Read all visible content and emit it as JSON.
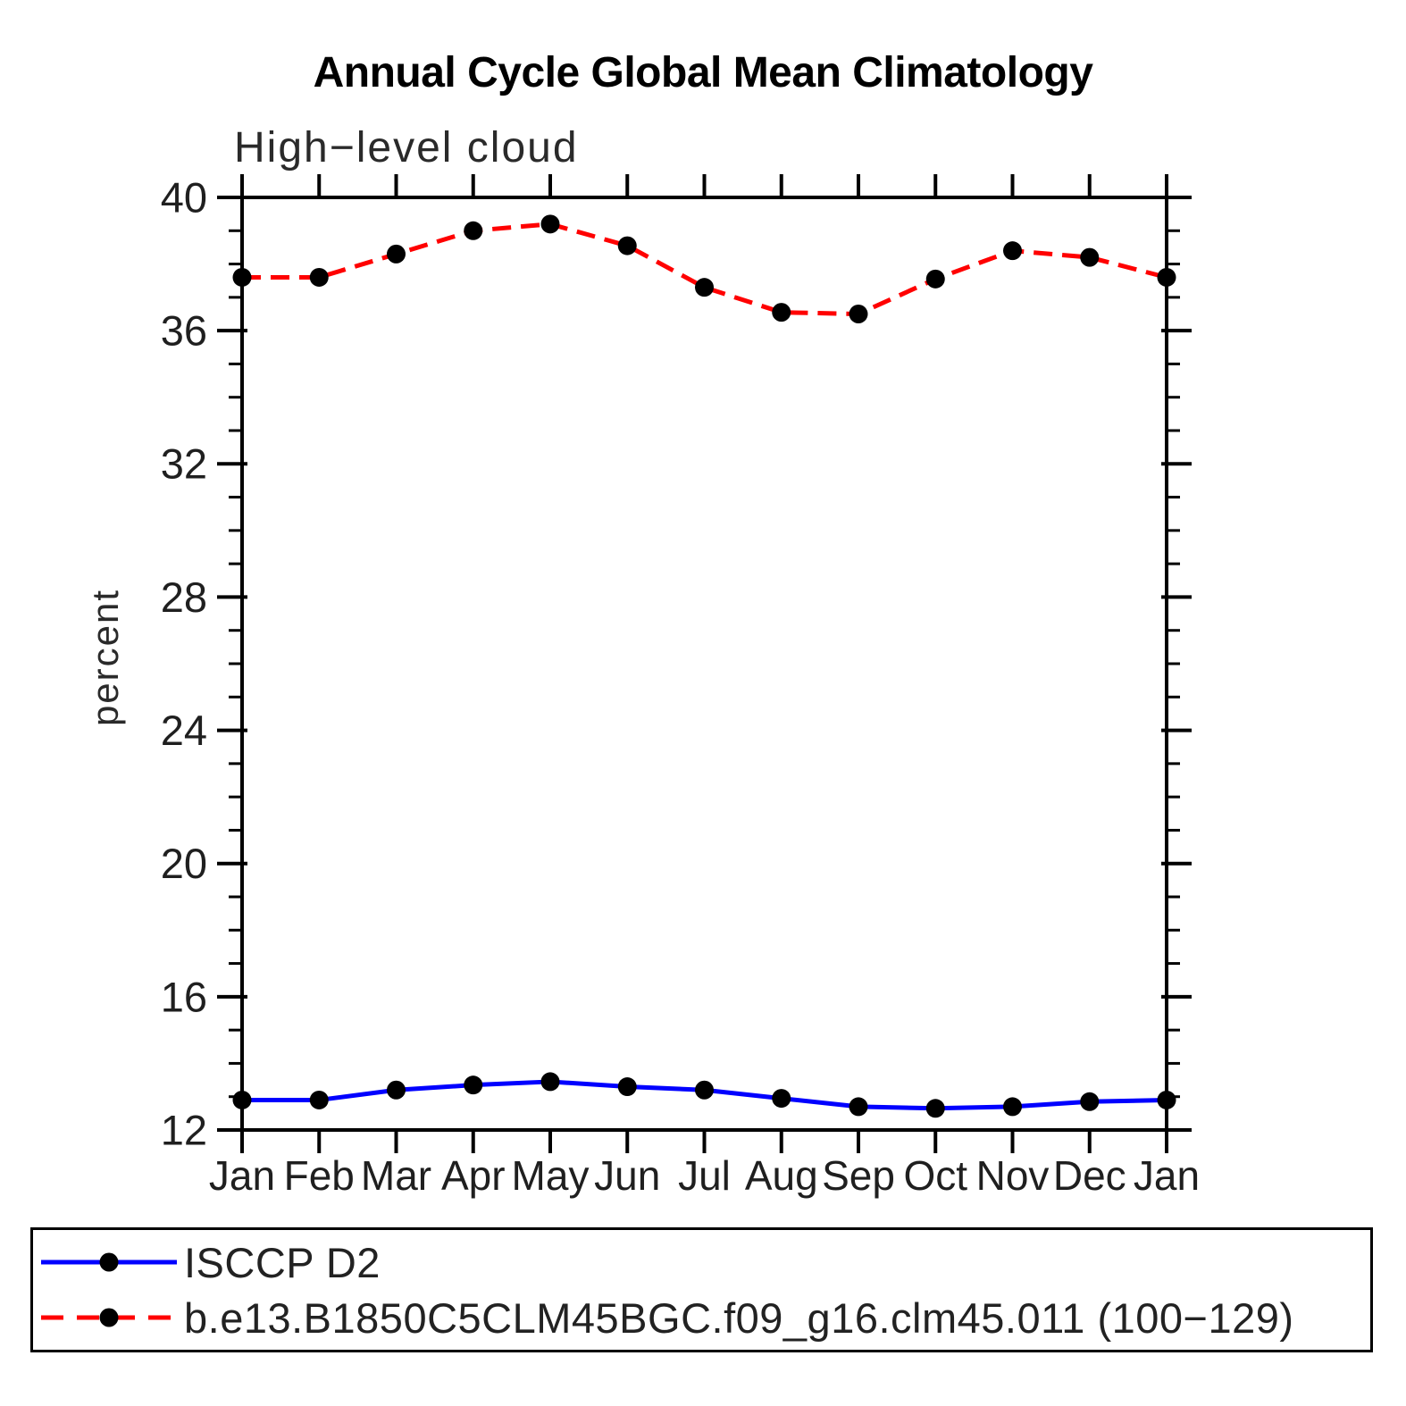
{
  "chart_data": {
    "type": "line",
    "title": "Annual Cycle Global Mean Climatology",
    "subtitle": "High−level cloud",
    "ylabel": "percent",
    "xlabel": "",
    "categories": [
      "Jan",
      "Feb",
      "Mar",
      "Apr",
      "May",
      "Jun",
      "Jul",
      "Aug",
      "Sep",
      "Oct",
      "Nov",
      "Dec",
      "Jan"
    ],
    "ylim": [
      12,
      40
    ],
    "ytick_major_step": 4,
    "ytick_minor_step": 1,
    "grid": false,
    "legend_position": "bottom-left-box",
    "axis_color": "#000000",
    "tick_label_color": "#1f1f1f",
    "series": [
      {
        "name": "ISCCP D2",
        "color": "#0000ff",
        "line_style": "solid",
        "marker": "filled-circle",
        "marker_color": "#000000",
        "values": [
          12.9,
          12.9,
          13.2,
          13.35,
          13.45,
          13.3,
          13.2,
          12.95,
          12.7,
          12.65,
          12.7,
          12.85,
          12.9
        ]
      },
      {
        "name": "b.e13.B1850C5CLM45BGC.f09_g16.clm45.011 (100−129)",
        "color": "#ff0000",
        "line_style": "dashed",
        "marker": "filled-circle",
        "marker_color": "#000000",
        "values": [
          37.6,
          37.6,
          38.3,
          39.0,
          39.2,
          38.55,
          37.3,
          36.55,
          36.5,
          37.55,
          38.4,
          38.2,
          37.6
        ]
      }
    ]
  }
}
